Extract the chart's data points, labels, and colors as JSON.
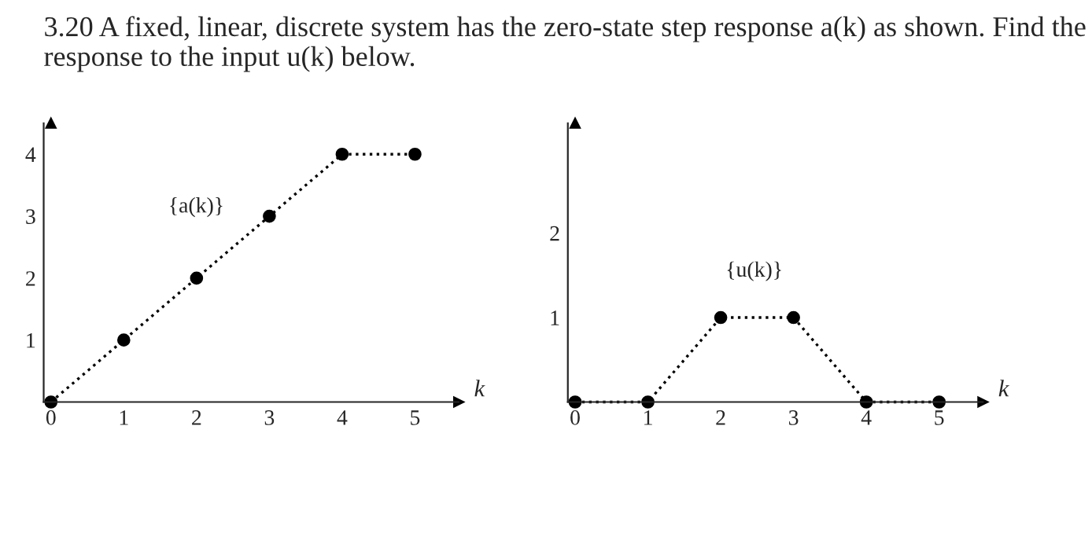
{
  "chart_data": [
    {
      "type": "line",
      "title": "3.20 A fixed, linear, discrete system has the zero-state step response a(k) as shown. Find the response to the input u(k) below.",
      "xlabel": "k",
      "x": [
        0,
        1,
        2,
        3,
        4,
        5
      ],
      "series": [
        {
          "color": "#000000",
          "values": [
            0,
            1,
            2,
            3,
            4,
            4
          ]
        }
      ],
      "xlim": [
        -0.1,
        5.6
      ],
      "ylim": [
        0,
        4.5
      ],
      "xticks": [
        0,
        1,
        2,
        3,
        4,
        5
      ],
      "yticks": [
        1,
        2,
        3,
        4
      ],
      "marker": "circle",
      "line_style": "dotted",
      "grid": false,
      "legend": false,
      "annotations": [
        "{a(k)}"
      ]
    },
    {
      "type": "line",
      "xlabel": "k",
      "x": [
        0,
        1,
        2,
        3,
        4,
        5
      ],
      "series": [
        {
          "color": "#000000",
          "values": [
            0,
            0,
            1,
            1,
            0,
            0
          ]
        }
      ],
      "xlim": [
        -0.1,
        5.6
      ],
      "ylim": [
        0,
        3.3
      ],
      "xticks": [
        0,
        1,
        2,
        3,
        4,
        5
      ],
      "yticks": [
        1,
        2
      ],
      "marker": "circle",
      "line_style": "dotted",
      "grid": false,
      "legend": false,
      "annotations": [
        "{u(k)}"
      ]
    }
  ]
}
